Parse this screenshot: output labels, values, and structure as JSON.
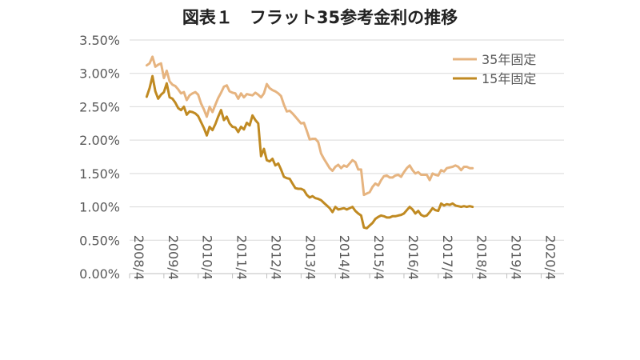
{
  "chart_data": {
    "type": "line",
    "title": "図表１　フラット35参考金利の推移",
    "xlabel": "",
    "ylabel": "",
    "ylim": [
      0,
      0.035
    ],
    "y_ticks": [
      "0.00%",
      "0.50%",
      "1.00%",
      "1.50%",
      "2.00%",
      "2.50%",
      "3.00%",
      "3.50%"
    ],
    "x_ticks": [
      "2008/4",
      "2009/4",
      "2010/4",
      "2011/4",
      "2012/4",
      "2013/4",
      "2014/4",
      "2015/4",
      "2016/4",
      "2017/4",
      "2018/4",
      "2019/4",
      "2020/4"
    ],
    "x_range": [
      "2008-04",
      "2020-12"
    ],
    "grid": "horizontal",
    "legend_position": "top-right",
    "series": [
      {
        "name": "35年固定",
        "color": "#e6b480",
        "points": [
          [
            "2008-10",
            3.12
          ],
          [
            "2008-11",
            3.15
          ],
          [
            "2008-12",
            3.25
          ],
          [
            "2009-01",
            3.1
          ],
          [
            "2009-02",
            3.13
          ],
          [
            "2009-03",
            3.15
          ],
          [
            "2009-04",
            2.93
          ],
          [
            "2009-05",
            3.04
          ],
          [
            "2009-06",
            2.88
          ],
          [
            "2009-07",
            2.83
          ],
          [
            "2009-08",
            2.81
          ],
          [
            "2009-09",
            2.76
          ],
          [
            "2009-10",
            2.7
          ],
          [
            "2009-11",
            2.72
          ],
          [
            "2009-12",
            2.6
          ],
          [
            "2010-01",
            2.67
          ],
          [
            "2010-02",
            2.7
          ],
          [
            "2010-03",
            2.72
          ],
          [
            "2010-04",
            2.68
          ],
          [
            "2010-05",
            2.55
          ],
          [
            "2010-06",
            2.46
          ],
          [
            "2010-07",
            2.35
          ],
          [
            "2010-08",
            2.5
          ],
          [
            "2010-09",
            2.42
          ],
          [
            "2010-10",
            2.53
          ],
          [
            "2010-11",
            2.63
          ],
          [
            "2010-12",
            2.71
          ],
          [
            "2011-01",
            2.8
          ],
          [
            "2011-02",
            2.82
          ],
          [
            "2011-03",
            2.73
          ],
          [
            "2011-04",
            2.71
          ],
          [
            "2011-05",
            2.7
          ],
          [
            "2011-06",
            2.62
          ],
          [
            "2011-07",
            2.7
          ],
          [
            "2011-08",
            2.64
          ],
          [
            "2011-09",
            2.69
          ],
          [
            "2011-10",
            2.68
          ],
          [
            "2011-11",
            2.67
          ],
          [
            "2011-12",
            2.71
          ],
          [
            "2012-01",
            2.68
          ],
          [
            "2012-02",
            2.64
          ],
          [
            "2012-03",
            2.7
          ],
          [
            "2012-04",
            2.84
          ],
          [
            "2012-05",
            2.78
          ],
          [
            "2012-06",
            2.75
          ],
          [
            "2012-07",
            2.73
          ],
          [
            "2012-08",
            2.7
          ],
          [
            "2012-09",
            2.66
          ],
          [
            "2012-10",
            2.53
          ],
          [
            "2012-11",
            2.43
          ],
          [
            "2012-12",
            2.44
          ],
          [
            "2013-01",
            2.4
          ],
          [
            "2013-02",
            2.35
          ],
          [
            "2013-03",
            2.3
          ],
          [
            "2013-04",
            2.25
          ],
          [
            "2013-05",
            2.26
          ],
          [
            "2013-06",
            2.14
          ],
          [
            "2013-07",
            2.01
          ],
          [
            "2013-08",
            2.02
          ],
          [
            "2013-09",
            2.02
          ],
          [
            "2013-10",
            1.97
          ],
          [
            "2013-11",
            1.8
          ],
          [
            "2013-12",
            1.72
          ],
          [
            "2014-01",
            1.65
          ],
          [
            "2014-02",
            1.58
          ],
          [
            "2014-03",
            1.54
          ],
          [
            "2014-04",
            1.6
          ],
          [
            "2014-05",
            1.63
          ],
          [
            "2014-06",
            1.58
          ],
          [
            "2014-07",
            1.62
          ],
          [
            "2014-08",
            1.6
          ],
          [
            "2014-09",
            1.65
          ],
          [
            "2014-10",
            1.7
          ],
          [
            "2014-11",
            1.67
          ],
          [
            "2014-12",
            1.56
          ],
          [
            "2015-01",
            1.56
          ],
          [
            "2015-02",
            1.18
          ],
          [
            "2015-03",
            1.2
          ],
          [
            "2015-04",
            1.22
          ],
          [
            "2015-05",
            1.3
          ],
          [
            "2015-06",
            1.35
          ],
          [
            "2015-07",
            1.32
          ],
          [
            "2015-08",
            1.4
          ],
          [
            "2015-09",
            1.46
          ],
          [
            "2015-10",
            1.47
          ],
          [
            "2015-11",
            1.44
          ],
          [
            "2015-12",
            1.44
          ],
          [
            "2016-01",
            1.47
          ],
          [
            "2016-02",
            1.48
          ],
          [
            "2016-03",
            1.45
          ],
          [
            "2016-04",
            1.52
          ],
          [
            "2016-05",
            1.58
          ],
          [
            "2016-06",
            1.62
          ],
          [
            "2016-07",
            1.55
          ],
          [
            "2016-08",
            1.5
          ],
          [
            "2016-09",
            1.52
          ],
          [
            "2016-10",
            1.48
          ],
          [
            "2016-11",
            1.48
          ],
          [
            "2016-12",
            1.48
          ],
          [
            "2017-01",
            1.4
          ],
          [
            "2017-02",
            1.5
          ],
          [
            "2017-03",
            1.48
          ],
          [
            "2017-04",
            1.47
          ],
          [
            "2017-05",
            1.55
          ],
          [
            "2017-06",
            1.53
          ],
          [
            "2017-07",
            1.58
          ],
          [
            "2017-08",
            1.59
          ],
          [
            "2017-09",
            1.6
          ],
          [
            "2017-10",
            1.62
          ],
          [
            "2017-11",
            1.6
          ],
          [
            "2017-12",
            1.55
          ],
          [
            "2018-01",
            1.6
          ],
          [
            "2018-02",
            1.6
          ],
          [
            "2018-03",
            1.58
          ],
          [
            "2018-04",
            1.58
          ]
        ]
      },
      {
        "name": "15年固定",
        "color": "#c08a22",
        "points": [
          [
            "2008-10",
            2.65
          ],
          [
            "2008-11",
            2.78
          ],
          [
            "2008-12",
            2.96
          ],
          [
            "2009-01",
            2.73
          ],
          [
            "2009-02",
            2.62
          ],
          [
            "2009-03",
            2.68
          ],
          [
            "2009-04",
            2.72
          ],
          [
            "2009-05",
            2.85
          ],
          [
            "2009-06",
            2.64
          ],
          [
            "2009-07",
            2.62
          ],
          [
            "2009-08",
            2.56
          ],
          [
            "2009-09",
            2.48
          ],
          [
            "2009-10",
            2.45
          ],
          [
            "2009-11",
            2.5
          ],
          [
            "2009-12",
            2.38
          ],
          [
            "2010-01",
            2.43
          ],
          [
            "2010-02",
            2.42
          ],
          [
            "2010-03",
            2.4
          ],
          [
            "2010-04",
            2.36
          ],
          [
            "2010-05",
            2.27
          ],
          [
            "2010-06",
            2.18
          ],
          [
            "2010-07",
            2.07
          ],
          [
            "2010-08",
            2.2
          ],
          [
            "2010-09",
            2.15
          ],
          [
            "2010-10",
            2.24
          ],
          [
            "2010-11",
            2.35
          ],
          [
            "2010-12",
            2.45
          ],
          [
            "2011-01",
            2.3
          ],
          [
            "2011-02",
            2.35
          ],
          [
            "2011-03",
            2.25
          ],
          [
            "2011-04",
            2.2
          ],
          [
            "2011-05",
            2.19
          ],
          [
            "2011-06",
            2.12
          ],
          [
            "2011-07",
            2.2
          ],
          [
            "2011-08",
            2.16
          ],
          [
            "2011-09",
            2.26
          ],
          [
            "2011-10",
            2.22
          ],
          [
            "2011-11",
            2.37
          ],
          [
            "2011-12",
            2.3
          ],
          [
            "2012-01",
            2.25
          ],
          [
            "2012-02",
            1.76
          ],
          [
            "2012-03",
            1.87
          ],
          [
            "2012-04",
            1.7
          ],
          [
            "2012-05",
            1.68
          ],
          [
            "2012-06",
            1.72
          ],
          [
            "2012-07",
            1.62
          ],
          [
            "2012-08",
            1.65
          ],
          [
            "2012-09",
            1.56
          ],
          [
            "2012-10",
            1.45
          ],
          [
            "2012-11",
            1.43
          ],
          [
            "2012-12",
            1.42
          ],
          [
            "2013-01",
            1.35
          ],
          [
            "2013-02",
            1.28
          ],
          [
            "2013-03",
            1.27
          ],
          [
            "2013-04",
            1.27
          ],
          [
            "2013-05",
            1.25
          ],
          [
            "2013-06",
            1.18
          ],
          [
            "2013-07",
            1.14
          ],
          [
            "2013-08",
            1.16
          ],
          [
            "2013-09",
            1.13
          ],
          [
            "2013-10",
            1.12
          ],
          [
            "2013-11",
            1.1
          ],
          [
            "2013-12",
            1.06
          ],
          [
            "2014-01",
            1.02
          ],
          [
            "2014-02",
            0.98
          ],
          [
            "2014-03",
            0.92
          ],
          [
            "2014-04",
            1.0
          ],
          [
            "2014-05",
            0.96
          ],
          [
            "2014-06",
            0.97
          ],
          [
            "2014-07",
            0.98
          ],
          [
            "2014-08",
            0.96
          ],
          [
            "2014-09",
            0.98
          ],
          [
            "2014-10",
            1.0
          ],
          [
            "2014-11",
            0.94
          ],
          [
            "2014-12",
            0.9
          ],
          [
            "2015-01",
            0.87
          ],
          [
            "2015-02",
            0.69
          ],
          [
            "2015-03",
            0.68
          ],
          [
            "2015-04",
            0.72
          ],
          [
            "2015-05",
            0.76
          ],
          [
            "2015-06",
            0.82
          ],
          [
            "2015-07",
            0.85
          ],
          [
            "2015-08",
            0.87
          ],
          [
            "2015-09",
            0.86
          ],
          [
            "2015-10",
            0.84
          ],
          [
            "2015-11",
            0.84
          ],
          [
            "2015-12",
            0.86
          ],
          [
            "2016-01",
            0.86
          ],
          [
            "2016-02",
            0.87
          ],
          [
            "2016-03",
            0.88
          ],
          [
            "2016-04",
            0.9
          ],
          [
            "2016-05",
            0.95
          ],
          [
            "2016-06",
            1.0
          ],
          [
            "2016-07",
            0.96
          ],
          [
            "2016-08",
            0.9
          ],
          [
            "2016-09",
            0.94
          ],
          [
            "2016-10",
            0.88
          ],
          [
            "2016-11",
            0.86
          ],
          [
            "2016-12",
            0.87
          ],
          [
            "2017-01",
            0.92
          ],
          [
            "2017-02",
            0.98
          ],
          [
            "2017-03",
            0.95
          ],
          [
            "2017-04",
            0.94
          ],
          [
            "2017-05",
            1.05
          ],
          [
            "2017-06",
            1.02
          ],
          [
            "2017-07",
            1.04
          ],
          [
            "2017-08",
            1.03
          ],
          [
            "2017-09",
            1.05
          ],
          [
            "2017-10",
            1.02
          ],
          [
            "2017-11",
            1.01
          ],
          [
            "2017-12",
            1.0
          ],
          [
            "2018-01",
            1.01
          ],
          [
            "2018-02",
            1.0
          ],
          [
            "2018-03",
            1.01
          ],
          [
            "2018-04",
            1.0
          ]
        ]
      }
    ]
  }
}
